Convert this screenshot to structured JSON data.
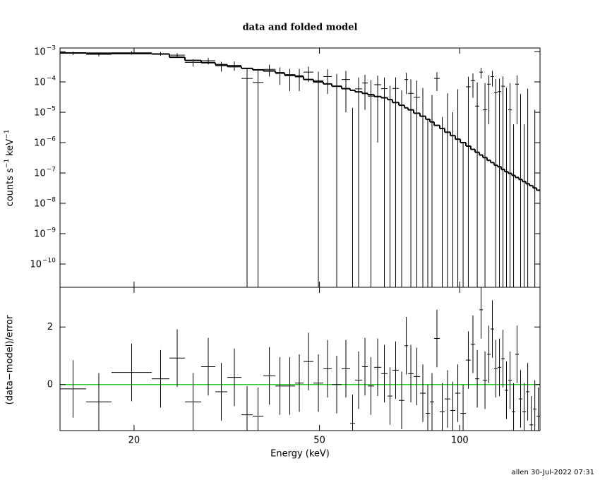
{
  "chart_data": {
    "type": "spectral-fit",
    "title": "data and folded model",
    "xlabel": "Energy (keV)",
    "xscale": "log",
    "xlim": [
      13.87,
      148.7
    ],
    "xticks": [
      20,
      50,
      100
    ],
    "energy_edges": [
      13.87,
      15.78,
      17.89,
      21.83,
      23.82,
      25.72,
      27.87,
      29.88,
      31.71,
      34.0,
      35.95,
      37.89,
      40.21,
      42.07,
      44.32,
      46.22,
      48.53,
      50.96,
      53.14,
      55.79,
      58.18,
      59.62,
      61.74,
      63.48,
      65.51,
      67.84,
      70.0,
      71.72,
      74.02,
      76.12,
      77.46,
      79.64,
      82.18,
      84.51,
      86.3,
      88.12,
      90.61,
      92.85,
      95.48,
      97.84,
      100.3,
      103.1,
      105.6,
      107.9,
      110.2,
      112.1,
      114.5,
      116.5,
      118.5,
      120.6,
      122.8,
      124.9,
      127.1,
      129.4,
      131.6,
      133.9,
      136.3,
      138.7,
      141.2,
      143.7,
      146.2,
      148.7
    ],
    "top": {
      "ylabel_parts": [
        "counts s",
        "−1",
        "keV",
        "−1"
      ],
      "yscale": "log",
      "ylim": [
        1.71e-11,
        0.00131
      ],
      "yticks": [
        {
          "value": 0.001,
          "label": "10",
          "exponent": "−3"
        },
        {
          "value": 0.0001,
          "label": "10",
          "exponent": "−4"
        },
        {
          "value": 1e-05,
          "label": "10",
          "exponent": "−5"
        },
        {
          "value": 1e-06,
          "label": "10",
          "exponent": "−6"
        },
        {
          "value": 1e-07,
          "label": "10",
          "exponent": "−7"
        },
        {
          "value": 1e-08,
          "label": "10",
          "exponent": "−8"
        },
        {
          "value": 1e-09,
          "label": "10",
          "exponent": "−9"
        },
        {
          "value": 1e-10,
          "label": "10",
          "exponent": "−10"
        }
      ],
      "data_color": "#000000",
      "model_color": "#000000",
      "data": [
        0.00088,
        0.00081,
        0.00091,
        0.00085,
        0.00076,
        0.00044,
        0.0005,
        0.00034,
        0.00035,
        0.00013,
        9.6e-05,
        0.00026,
        0.00019,
        0.00016,
        0.00016,
        0.00021,
        0.00011,
        0.00015,
        7.2e-05,
        0.00012,
        -9.6e-05,
        5.9e-05,
        9.2e-05,
        3.4e-05,
        8.1e-05,
        6e-05,
        -6e-06,
        6.1e-05,
        -2.7e-05,
        0.00012,
        4.2e-05,
        3.1e-05,
        -1.7e-05,
        -7.4e-05,
        -4.3e-05,
        0.00013,
        -7.3e-05,
        -3.8e-05,
        -7e-05,
        -2.3e-05,
        -7.9e-05,
        6.9e-05,
        0.00011,
        1.6e-05,
        0.00021,
        1.2e-05,
        8.4e-05,
        0.00015,
        4.4e-05,
        4.8e-05,
        7.2e-05,
        -1.6e-05,
        1.2e-05,
        -7.6e-05,
        8.4e-05,
        -4e-05,
        -7.6e-05,
        -2e-05,
        -0.00011,
        -6.8e-05,
        -8.8e-05
      ],
      "errors": [
        0.00012,
        0.00012,
        0.00012,
        0.00012,
        0.00012,
        0.00012,
        0.00012,
        0.00012,
        0.00012,
        0.00014,
        0.00014,
        0.00011,
        0.00011,
        0.00011,
        0.00011,
        0.00011,
        0.00011,
        0.00011,
        0.00011,
        0.00011,
        0.00011,
        8e-05,
        8e-05,
        8e-05,
        8e-05,
        8e-05,
        8e-05,
        8e-05,
        8e-05,
        8e-05,
        8e-05,
        8e-05,
        8e-05,
        8e-05,
        8e-05,
        8e-05,
        8e-05,
        8e-05,
        8e-05,
        8e-05,
        8e-05,
        8e-05,
        8e-05,
        8e-05,
        8e-05,
        8e-05,
        8e-05,
        8e-05,
        8e-05,
        8e-05,
        8e-05,
        8e-05,
        8e-05,
        8e-05,
        8e-05,
        8e-05,
        8e-05,
        8e-05,
        8e-05,
        8e-05,
        8e-05
      ],
      "model": [
        0.0009,
        0.00088,
        0.00086,
        0.00083,
        0.00065,
        0.00051,
        0.00043,
        0.00037,
        0.00032,
        0.00028,
        0.00025,
        0.00023,
        0.0002,
        0.00017,
        0.00015,
        0.00012,
        0.0001,
        8.6e-05,
        7.2e-05,
        6e-05,
        5.3e-05,
        4.7e-05,
        4.2e-05,
        3.8e-05,
        3.3e-05,
        3e-05,
        2.6e-05,
        2.1e-05,
        1.7e-05,
        1.4e-05,
        1.2e-05,
        9.3e-06,
        7.4e-06,
        5.9e-06,
        4.8e-06,
        3.7e-06,
        2.9e-06,
        2.2e-06,
        1.7e-06,
        1.3e-06,
        1e-06,
        7.7e-07,
        6e-07,
        4.8e-07,
        3.9e-07,
        3.2e-07,
        2.6e-07,
        2.2e-07,
        1.8e-07,
        1.6e-07,
        1.3e-07,
        1.1e-07,
        9.7e-08,
        8.3e-08,
        7.1e-08,
        6.1e-08,
        5.2e-08,
        4.4e-08,
        3.8e-08,
        3.2e-08,
        2.7e-08
      ]
    },
    "bottom": {
      "ylabel": "(data−model)/error",
      "ylim": [
        -1.6,
        3.38
      ],
      "yticks": [
        0,
        2
      ],
      "reference_line": 0,
      "reference_color": "#00c800",
      "residual_error": 1,
      "values": [
        -0.15,
        -0.6,
        0.42,
        0.2,
        0.92,
        -0.6,
        0.62,
        -0.25,
        0.25,
        -1.05,
        -1.1,
        0.3,
        -0.05,
        -0.05,
        0.05,
        0.8,
        0.05,
        0.55,
        0,
        0.55,
        -1.35,
        0.15,
        0.62,
        -0.05,
        0.6,
        0.38,
        -0.4,
        0.5,
        -0.55,
        1.35,
        0.38,
        0.28,
        -0.3,
        -1,
        -0.6,
        1.6,
        -0.95,
        -0.5,
        -0.9,
        -0.3,
        -1,
        0.85,
        1.4,
        0.2,
        2.6,
        0.15,
        1.05,
        1.93,
        0.55,
        0.6,
        0.9,
        -0.2,
        0.15,
        -0.95,
        1.05,
        -0.5,
        -0.95,
        -0.25,
        -1.4,
        -0.85,
        -1.1
      ]
    }
  },
  "footer": "allen 30-Jul-2022 07:31"
}
